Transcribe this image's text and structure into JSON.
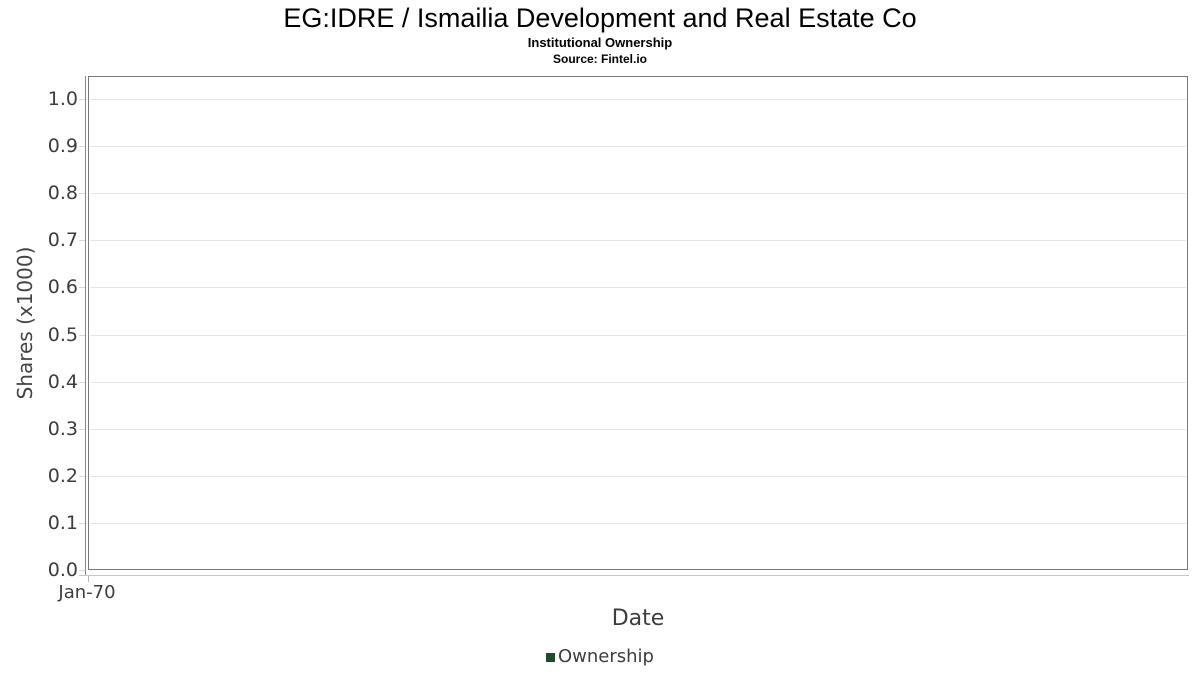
{
  "header": {
    "title": "EG:IDRE / Ismailia Development and Real Estate Co",
    "subtitle": "Institutional Ownership",
    "source": "Source: Fintel.io"
  },
  "colors": {
    "legend_green": "#1e4d2b",
    "gridline": "#e6e6e6",
    "plot_border": "#7a7a7a",
    "tick": "#d8d8d8",
    "label_text": "#3d3d3d"
  },
  "chart_data": {
    "type": "line",
    "title": "EG:IDRE / Ismailia Development and Real Estate Co",
    "subtitle": "Institutional Ownership",
    "source": "Source: Fintel.io",
    "xlabel": "Date",
    "ylabel": "Shares (x1000)",
    "x_ticks": [
      "Jan-70"
    ],
    "y_ticks": [
      "0.0",
      "0.1",
      "0.2",
      "0.3",
      "0.4",
      "0.5",
      "0.6",
      "0.7",
      "0.8",
      "0.9",
      "1.0"
    ],
    "ylim": [
      0,
      1.05
    ],
    "grid": "horizontal-only",
    "legend_position": "bottom-center",
    "legend": [
      {
        "label": "Ownership",
        "color": "#1e4d2b"
      }
    ],
    "series": [
      {
        "name": "Ownership",
        "x": [],
        "y": []
      }
    ]
  }
}
